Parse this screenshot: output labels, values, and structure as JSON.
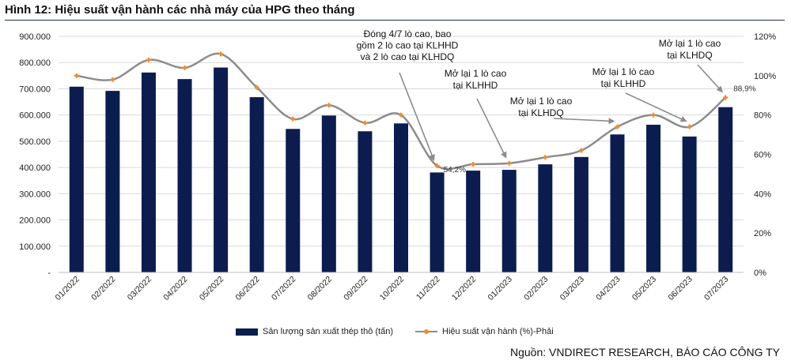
{
  "figure": {
    "title": "Hình 12: Hiệu suất vận hành các nhà máy của HPG theo tháng",
    "source": "Nguồn: VNDIRECT RESEARCH, BÁO CÁO CÔNG TY"
  },
  "colors": {
    "bar": "#0b1d4f",
    "line": "#8c8c8c",
    "marker": "#f28c28",
    "grid": "#d9d9d9"
  },
  "chart_data": {
    "type": "bar",
    "categories": [
      "01/2022",
      "02/2022",
      "03/2022",
      "04/2022",
      "05/2022",
      "06/2022",
      "07/2022",
      "08/2022",
      "09/2022",
      "10/2022",
      "11/2022",
      "12/2022",
      "01/2023",
      "02/2023",
      "03/2023",
      "04/2023",
      "05/2023",
      "06/2023",
      "07/2023"
    ],
    "series": [
      {
        "name": "Sản lượng sản xuất thép thô (tấn)",
        "type": "bar",
        "axis": "left",
        "values": [
          708000,
          692000,
          762000,
          737000,
          781000,
          668000,
          547000,
          598000,
          538000,
          568000,
          381000,
          388000,
          391000,
          412000,
          440000,
          526000,
          563000,
          518000,
          630000
        ]
      },
      {
        "name": "Hiệu suất vận hành (%)-Phải",
        "type": "line",
        "axis": "right",
        "values": [
          100,
          98,
          108,
          104,
          111,
          94,
          78,
          85,
          76,
          80,
          54.2,
          55,
          55.5,
          58.5,
          62,
          74,
          80,
          74,
          88.9
        ]
      }
    ],
    "y_left": {
      "ylim": [
        0,
        900000
      ],
      "ticks": [
        "-",
        "100.000",
        "200.000",
        "300.000",
        "400.000",
        "500.000",
        "600.000",
        "700.000",
        "800.000",
        "900.000"
      ]
    },
    "y_right": {
      "ylim": [
        0,
        120
      ],
      "ticks": [
        "0%",
        "20%",
        "40%",
        "60%",
        "80%",
        "100%",
        "120%"
      ]
    },
    "data_labels": [
      {
        "index": 10,
        "text": "54,2%"
      },
      {
        "index": 18,
        "text": "88,9%"
      }
    ],
    "annotations": [
      {
        "lines": [
          "Đóng 4/7 lò cao, bao",
          "gồm 2 lò cao tại KLHHD",
          "và 2 lò cao tại KLHDQ"
        ],
        "points_to": 10
      },
      {
        "lines": [
          "Mở lại 1 lò cao",
          "tại KLHHD"
        ],
        "points_to": 12
      },
      {
        "lines": [
          "Mở lại 1 lò cao",
          "tại KLHDQ"
        ],
        "points_to": 15
      },
      {
        "lines": [
          "Mở lại 1 lò cao",
          "tại KLHHD"
        ],
        "points_to": 17
      },
      {
        "lines": [
          "Mở lại 1 lò cao",
          "tại KLHDQ"
        ],
        "points_to": 18
      }
    ],
    "grid": true,
    "legend_position": "bottom"
  }
}
